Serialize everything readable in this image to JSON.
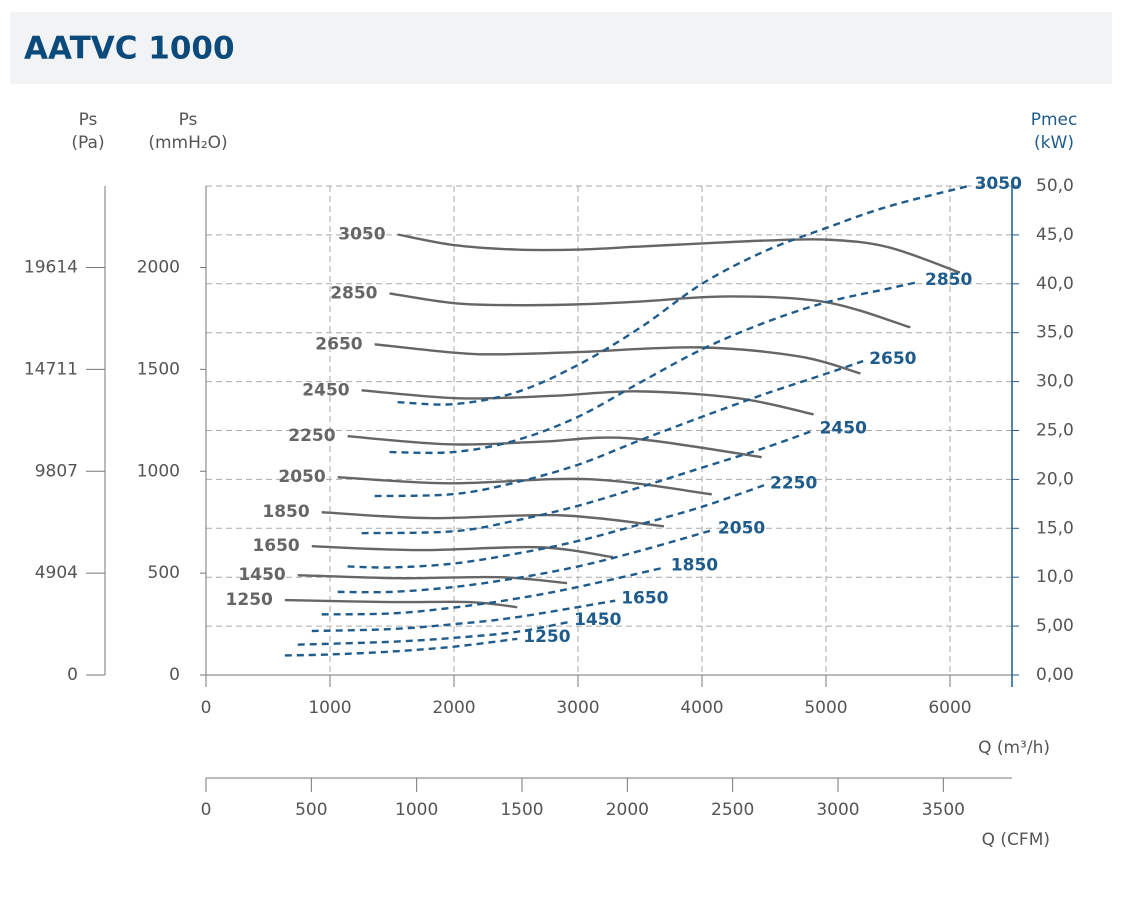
{
  "chart_data": {
    "type": "line",
    "title": "AATVC 1000",
    "pa_label": "Ps",
    "pa_unit": "(Pa)",
    "y_label": "Ps",
    "y_unit": "(mmH₂O)",
    "y2_label": "Pmec",
    "y2_unit": "(kW)",
    "x_label": "Q (m³/h)",
    "cfm_label": "Q (CFM)",
    "xlim": [
      0,
      6500
    ],
    "xticks": [
      0,
      1000,
      2000,
      3000,
      4000,
      5000,
      6000
    ],
    "ylim": [
      0,
      2400
    ],
    "yticks": [
      0,
      500,
      1000,
      1500,
      2000
    ],
    "pa_lim": [
      0,
      23537
    ],
    "pa_ticks": [
      0,
      4904,
      9807,
      14711,
      19614
    ],
    "y2lim": [
      0,
      50
    ],
    "y2ticks": [
      {
        "value": 0,
        "label": "0,00"
      },
      {
        "value": 5,
        "label": "5,00"
      },
      {
        "value": 10,
        "label": "10,0"
      },
      {
        "value": 15,
        "label": "15,0"
      },
      {
        "value": 20,
        "label": "20,0"
      },
      {
        "value": 25,
        "label": "25,0"
      },
      {
        "value": 30,
        "label": "30,0"
      },
      {
        "value": 35,
        "label": "35,0"
      },
      {
        "value": 40,
        "label": "40,0"
      },
      {
        "value": 45,
        "label": "45,0"
      },
      {
        "value": 50,
        "label": "50,0"
      }
    ],
    "cfm_lim": [
      0,
      3826
    ],
    "cfm_ticks": [
      0,
      500,
      1000,
      1500,
      2000,
      2500,
      3000,
      3500
    ],
    "grid": true,
    "series": [
      {
        "name": "3050",
        "color": "#666666",
        "x": [
          1545,
          2000,
          2500,
          3000,
          3500,
          4000,
          4500,
          5000,
          5500,
          6080
        ],
        "values": [
          2162,
          2110,
          2088,
          2088,
          2103,
          2118,
          2132,
          2137,
          2100,
          1975
        ]
      },
      {
        "name": "2850",
        "color": "#666666",
        "x": [
          1480,
          2000,
          2500,
          3000,
          3500,
          4215,
          5000,
          5680
        ],
        "values": [
          1873,
          1825,
          1815,
          1819,
          1833,
          1858,
          1830,
          1706
        ]
      },
      {
        "name": "2650",
        "color": "#666666",
        "x": [
          1360,
          2000,
          2365,
          3000,
          3974,
          4779,
          5278
        ],
        "values": [
          1623,
          1582,
          1574,
          1585,
          1608,
          1564,
          1480
        ]
      },
      {
        "name": "2450",
        "color": "#666666",
        "x": [
          1255,
          2043,
          2800,
          3492,
          4296,
          4900
        ],
        "values": [
          1397,
          1358,
          1370,
          1392,
          1358,
          1279
        ]
      },
      {
        "name": "2250",
        "color": "#666666",
        "x": [
          1142,
          1963,
          2700,
          3411,
          4481
        ],
        "values": [
          1172,
          1132,
          1145,
          1162,
          1069
        ]
      },
      {
        "name": "2050",
        "color": "#666666",
        "x": [
          1062,
          1963,
          3089,
          4079
        ],
        "values": [
          971,
          941,
          961,
          887
        ]
      },
      {
        "name": "1850",
        "color": "#666666",
        "x": [
          933,
          1802,
          2848,
          3693
        ],
        "values": [
          799,
          770,
          784,
          730
        ]
      },
      {
        "name": "1650",
        "color": "#666666",
        "x": [
          853,
          1722,
          2687,
          3282
        ],
        "values": [
          632,
          613,
          627,
          578
        ]
      },
      {
        "name": "1450",
        "color": "#666666",
        "x": [
          740,
          1561,
          2365,
          2912
        ],
        "values": [
          490,
          475,
          480,
          451
        ]
      },
      {
        "name": "1250",
        "color": "#666666",
        "x": [
          636,
          1480,
          2124,
          2510
        ],
        "values": [
          368,
          358,
          358,
          333
        ]
      },
      {
        "name": "3050",
        "color": "#1f5c8b",
        "axis": "y2",
        "line_style": "dashed",
        "x": [
          1545,
          2000,
          2500,
          3000,
          3500,
          4000,
          4500,
          5000,
          5500,
          6150
        ],
        "values": [
          27.9,
          27.7,
          28.9,
          31.7,
          35.5,
          40,
          43.3,
          45.7,
          47.9,
          50
        ]
      },
      {
        "name": "2850",
        "color": "#1f5c8b",
        "axis": "y2",
        "line_style": "dashed",
        "x": [
          1480,
          2000,
          2500,
          3000,
          3500,
          4000,
          4500,
          5000,
          5500,
          5750
        ],
        "values": [
          22.8,
          22.8,
          24,
          26.4,
          29.9,
          33.3,
          36,
          38.1,
          39.5,
          40.2
        ]
      },
      {
        "name": "2650",
        "color": "#1f5c8b",
        "axis": "y2",
        "line_style": "dashed",
        "x": [
          1360,
          2000,
          2500,
          3000,
          3500,
          4000,
          4500,
          5000,
          5300
        ],
        "values": [
          18.3,
          18.5,
          19.7,
          21.5,
          24,
          26.4,
          28.7,
          30.8,
          32.1
        ]
      },
      {
        "name": "2450",
        "color": "#1f5c8b",
        "axis": "y2",
        "line_style": "dashed",
        "x": [
          1255,
          2000,
          2500,
          3000,
          3500,
          4000,
          4500,
          4900
        ],
        "values": [
          14.5,
          14.7,
          15.8,
          17.3,
          19.2,
          21.2,
          23.2,
          25
        ]
      },
      {
        "name": "2250",
        "color": "#1f5c8b",
        "axis": "y2",
        "line_style": "dashed",
        "x": [
          1142,
          1500,
          2000,
          2500,
          3000,
          3500,
          4000,
          4500
        ],
        "values": [
          11.1,
          11,
          11.4,
          12.4,
          13.7,
          15.4,
          17.2,
          19.4
        ]
      },
      {
        "name": "2050",
        "color": "#1f5c8b",
        "axis": "y2",
        "line_style": "dashed",
        "x": [
          1062,
          1500,
          2000,
          2500,
          3000,
          3500,
          4080
        ],
        "values": [
          8.5,
          8.5,
          9,
          9.9,
          11.1,
          12.7,
          14.8
        ]
      },
      {
        "name": "1850",
        "color": "#1f5c8b",
        "axis": "y2",
        "line_style": "dashed",
        "x": [
          933,
          1500,
          2000,
          2500,
          3000,
          3700
        ],
        "values": [
          6.2,
          6.3,
          6.9,
          7.8,
          9,
          11
        ]
      },
      {
        "name": "1650",
        "color": "#1f5c8b",
        "axis": "y2",
        "line_style": "dashed",
        "x": [
          853,
          1500,
          2000,
          2500,
          3300
        ],
        "values": [
          4.5,
          4.7,
          5.2,
          5.9,
          7.6
        ]
      },
      {
        "name": "1450",
        "color": "#1f5c8b",
        "axis": "y2",
        "line_style": "dashed",
        "x": [
          740,
          1500,
          2000,
          2500,
          2920
        ],
        "values": [
          3.1,
          3.4,
          3.8,
          4.4,
          5.4
        ]
      },
      {
        "name": "1250",
        "color": "#1f5c8b",
        "axis": "y2",
        "line_style": "dashed",
        "x": [
          636,
          1000,
          1500,
          2000,
          2510
        ],
        "values": [
          2,
          2.1,
          2.4,
          2.9,
          3.7
        ]
      }
    ]
  }
}
